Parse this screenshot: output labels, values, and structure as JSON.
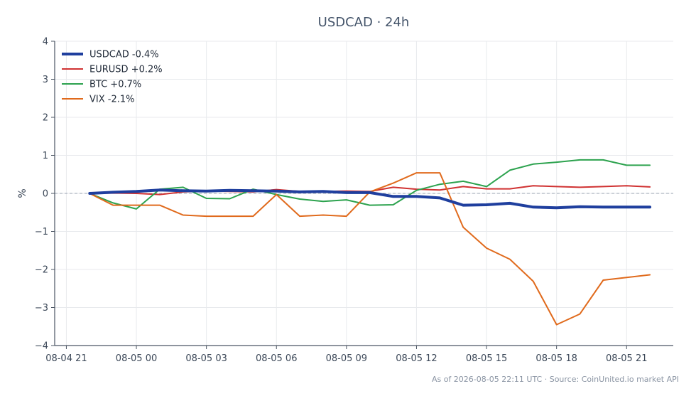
{
  "chart_data": {
    "type": "line",
    "title": "USDCAD · 24h",
    "xlabel": "",
    "ylabel": "%",
    "ylim": [
      -4,
      4
    ],
    "yticks": [
      -4,
      -3,
      -2,
      -1,
      0,
      1,
      2,
      3,
      4
    ],
    "ytick_labels": [
      "−4",
      "−3",
      "−2",
      "−1",
      "0",
      "1",
      "2",
      "3",
      "4"
    ],
    "xlim": [
      "2026-08-04 20:30",
      "2026-08-05 23:00"
    ],
    "xticks": [
      "2026-08-04 21:00",
      "2026-08-05 00:00",
      "2026-08-05 03:00",
      "2026-08-05 06:00",
      "2026-08-05 09:00",
      "2026-08-05 12:00",
      "2026-08-05 15:00",
      "2026-08-05 18:00",
      "2026-08-05 21:00"
    ],
    "xtick_labels": [
      "08-04 21",
      "08-05 00",
      "08-05 03",
      "08-05 06",
      "08-05 09",
      "08-05 12",
      "08-05 15",
      "08-05 18",
      "08-05 21"
    ],
    "x": [
      "2026-08-04 22:00",
      "2026-08-04 23:00",
      "2026-08-05 00:00",
      "2026-08-05 01:00",
      "2026-08-05 02:00",
      "2026-08-05 03:00",
      "2026-08-05 04:00",
      "2026-08-05 05:00",
      "2026-08-05 06:00",
      "2026-08-05 07:00",
      "2026-08-05 08:00",
      "2026-08-05 09:00",
      "2026-08-05 10:00",
      "2026-08-05 11:00",
      "2026-08-05 12:00",
      "2026-08-05 13:00",
      "2026-08-05 14:00",
      "2026-08-05 15:00",
      "2026-08-05 16:00",
      "2026-08-05 17:00",
      "2026-08-05 18:00",
      "2026-08-05 19:00",
      "2026-08-05 20:00",
      "2026-08-05 21:00",
      "2026-08-05 22:00"
    ],
    "grid": true,
    "zero_line": true,
    "legend": "top-left",
    "series": [
      {
        "name": "USDCAD -0.4%",
        "color": "#1f3f9e",
        "width": 4,
        "values": [
          0.0,
          0.03,
          0.05,
          0.09,
          0.07,
          0.06,
          0.08,
          0.07,
          0.06,
          0.04,
          0.05,
          0.02,
          0.02,
          -0.08,
          -0.08,
          -0.12,
          -0.31,
          -0.3,
          -0.26,
          -0.36,
          -0.38,
          -0.35,
          -0.36,
          -0.36,
          -0.36
        ]
      },
      {
        "name": "EURUSD +0.2%",
        "color": "#d03232",
        "width": 2,
        "values": [
          0.0,
          0.01,
          0.0,
          -0.03,
          0.04,
          0.06,
          0.05,
          0.04,
          0.1,
          0.05,
          0.05,
          0.06,
          0.05,
          0.16,
          0.11,
          0.09,
          0.18,
          0.12,
          0.12,
          0.2,
          0.18,
          0.16,
          0.18,
          0.2,
          0.17
        ]
      },
      {
        "name": "BTC +0.7%",
        "color": "#2ca24e",
        "width": 2,
        "values": [
          0.0,
          -0.25,
          -0.41,
          0.11,
          0.16,
          -0.13,
          -0.14,
          0.11,
          -0.03,
          -0.15,
          -0.21,
          -0.17,
          -0.31,
          -0.3,
          0.08,
          0.24,
          0.32,
          0.18,
          0.61,
          0.77,
          0.82,
          0.88,
          0.88,
          0.74,
          0.74
        ]
      },
      {
        "name": "VIX -2.1%",
        "color": "#e06a1c",
        "width": 2,
        "values": [
          0.0,
          -0.31,
          -0.31,
          -0.31,
          -0.57,
          -0.6,
          -0.6,
          -0.6,
          -0.03,
          -0.6,
          -0.57,
          -0.6,
          0.04,
          0.27,
          0.54,
          0.54,
          -0.89,
          -1.44,
          -1.73,
          -2.31,
          -3.45,
          -3.17,
          -2.28,
          -2.21,
          -2.14
        ]
      }
    ]
  },
  "footer": "As of 2026-08-05 22:11 UTC · Source: CoinUnited.io market API"
}
